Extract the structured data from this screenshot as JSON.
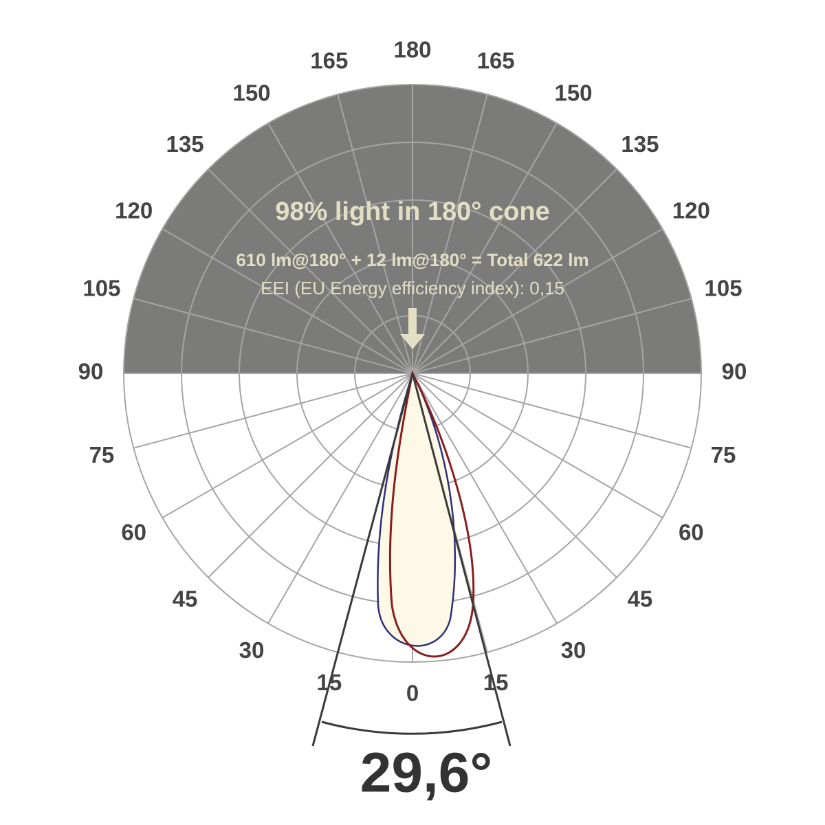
{
  "title": "98% light in 180° cone",
  "flux": "610 lm@180° + 12 lm@180° = Total 622 lm",
  "eei": "EEI (EU Energy efficiency index): 0,15",
  "angles": {
    "top": 180,
    "bottom": 0,
    "left": [
      15,
      30,
      45,
      60,
      75,
      90,
      105,
      120,
      135,
      150,
      165
    ],
    "right": [
      15,
      30,
      45,
      60,
      75,
      90,
      105,
      120,
      135,
      150,
      165
    ]
  },
  "beam_angle": "29,6°"
}
